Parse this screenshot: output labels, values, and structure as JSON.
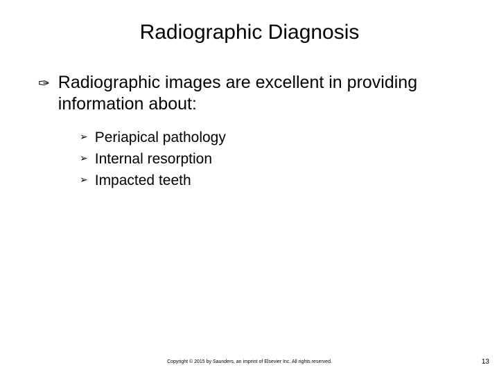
{
  "slide": {
    "title": "Radiographic Diagnosis",
    "main_bullet": {
      "icon": "✑",
      "text": "Radiographic images are excellent in providing information about:"
    },
    "sub_bullets": [
      {
        "icon": "➢",
        "text": "Periapical pathology"
      },
      {
        "icon": "➢",
        "text": "Internal resorption"
      },
      {
        "icon": "➢",
        "text": "Impacted teeth"
      }
    ],
    "copyright": "Copyright © 2015 by Saunders, an imprint of Elsevier Inc. All rights reserved.",
    "page_number": "13"
  },
  "styling": {
    "background_color": "#ffffff",
    "text_color": "#000000",
    "title_fontsize": 30,
    "main_text_fontsize": 25,
    "sub_text_fontsize": 21,
    "copyright_fontsize": 7,
    "page_number_fontsize": 10
  }
}
